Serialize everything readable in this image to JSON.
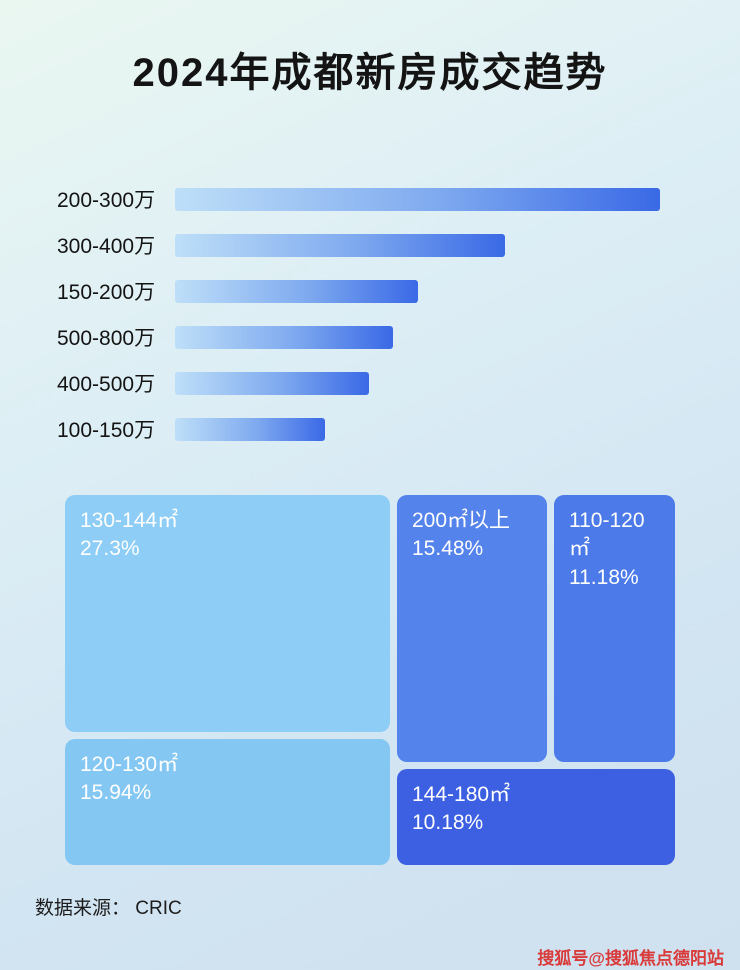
{
  "page": {
    "title": "2024年成都新房成交趋势",
    "source": "数据来源： CRIC",
    "watermark": "搜狐号@搜狐焦点德阳站"
  },
  "colors": {
    "bar_gradient_start": "#bedff8",
    "bar_gradient_end": "#3a69e6",
    "label_color": "#141414",
    "watermark_color": "#d93a3a"
  },
  "chart_data": [
    {
      "type": "bar",
      "orientation": "horizontal",
      "title": "2024年成都新房成交趋势",
      "categories": [
        "200-300万",
        "300-400万",
        "150-200万",
        "500-800万",
        "400-500万",
        "100-150万"
      ],
      "values": [
        100,
        68,
        50,
        45,
        40,
        31
      ],
      "value_note": "relative bar lengths, no numeric axis shown",
      "xlabel": "",
      "ylabel": "",
      "axis": "none",
      "grid": "off",
      "legend": "none"
    },
    {
      "type": "treemap",
      "title": "",
      "items": [
        {
          "label": "130-144㎡",
          "value": 27.3,
          "value_text": "27.3%",
          "color": "#8ecdf5"
        },
        {
          "label": "120-130㎡",
          "value": 15.94,
          "value_text": "15.94%",
          "color": "#85c7f3"
        },
        {
          "label": "200㎡以上",
          "value": 15.48,
          "value_text": "15.48%",
          "color": "#5383eb"
        },
        {
          "label": "110-120㎡",
          "value": 11.18,
          "value_text": "11.18%",
          "color": "#4c7ae8"
        },
        {
          "label": "144-180㎡",
          "value": 10.18,
          "value_text": "10.18%",
          "color": "#3d60e2"
        }
      ]
    }
  ]
}
